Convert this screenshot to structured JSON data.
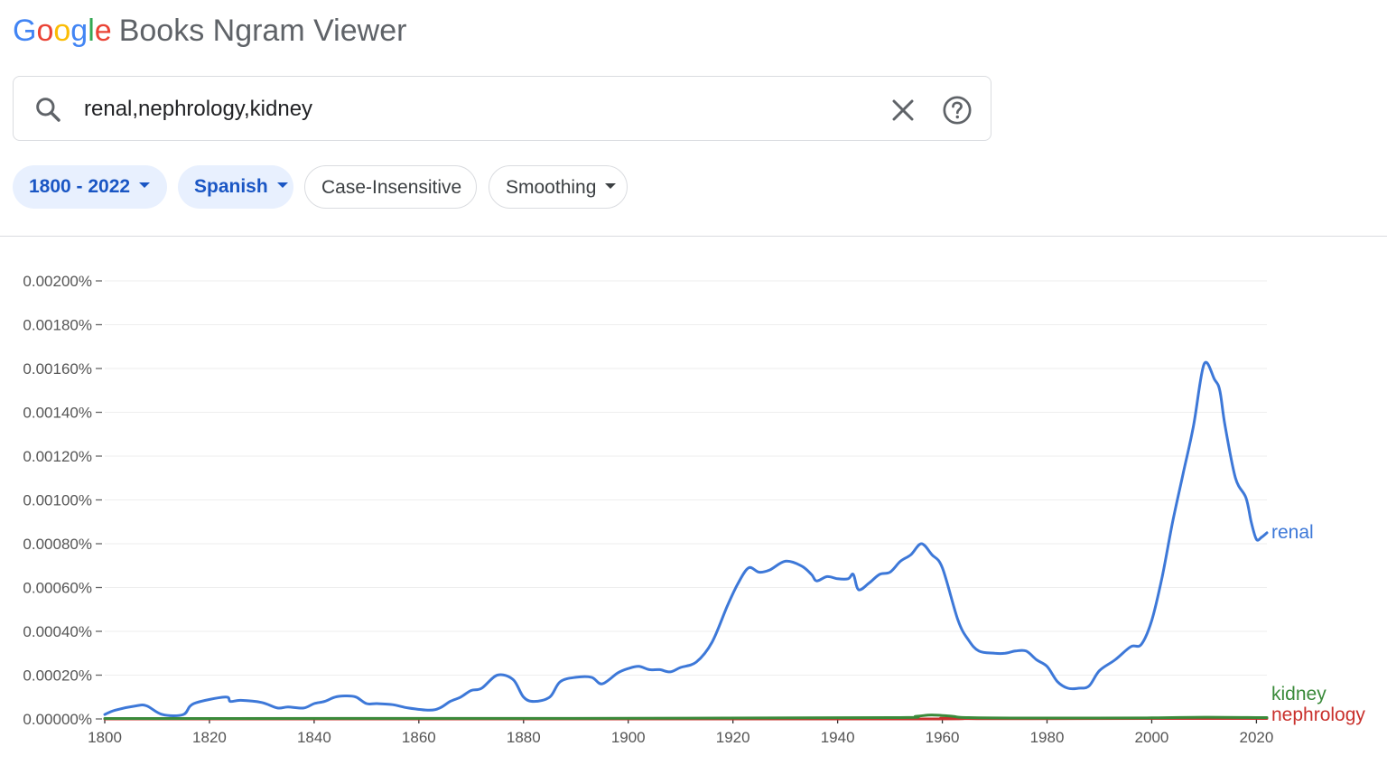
{
  "header": {
    "logo_letters": [
      {
        "ch": "G",
        "color": "#4285F4"
      },
      {
        "ch": "o",
        "color": "#EA4335"
      },
      {
        "ch": "o",
        "color": "#FBBC05"
      },
      {
        "ch": "g",
        "color": "#4285F4"
      },
      {
        "ch": "l",
        "color": "#34A853"
      },
      {
        "ch": "e",
        "color": "#EA4335"
      }
    ],
    "app_title": "Books Ngram Viewer"
  },
  "search": {
    "query": "renal,nephrology,kidney",
    "icons": {
      "search": "search-icon",
      "clear": "close-icon",
      "help": "help-icon"
    }
  },
  "filters": {
    "year_range": "1800 - 2022",
    "corpus": "Spanish",
    "case": "Case-Insensitive",
    "smoothing": "Smoothing"
  },
  "chart_data": {
    "type": "line",
    "xlim": [
      1800,
      2022
    ],
    "ylim": [
      0,
      0.002
    ],
    "y_ticks": [
      "0.00000%",
      "0.00020%",
      "0.00040%",
      "0.00060%",
      "0.00080%",
      "0.00100%",
      "0.00120%",
      "0.00140%",
      "0.00160%",
      "0.00180%",
      "0.00200%"
    ],
    "x_ticks": [
      "1800",
      "1820",
      "1840",
      "1860",
      "1880",
      "1900",
      "1920",
      "1940",
      "1960",
      "1980",
      "2000",
      "2020"
    ],
    "grid": true,
    "series": [
      {
        "name": "renal",
        "color": "#3d78d8",
        "x": [
          1800,
          1802,
          1806,
          1808,
          1811,
          1815,
          1817,
          1823,
          1824,
          1826,
          1830,
          1833,
          1835,
          1838,
          1840,
          1842,
          1844,
          1846,
          1848,
          1850,
          1852,
          1855,
          1858,
          1862,
          1864,
          1866,
          1868,
          1870,
          1872,
          1875,
          1878,
          1880,
          1882,
          1885,
          1887,
          1890,
          1893,
          1895,
          1898,
          1900,
          1902,
          1904,
          1906,
          1908,
          1910,
          1913,
          1916,
          1919,
          1921,
          1923,
          1925,
          1927,
          1930,
          1933,
          1935,
          1936,
          1938,
          1940,
          1942,
          1943,
          1944,
          1946,
          1948,
          1950,
          1952,
          1954,
          1956,
          1958,
          1960,
          1963,
          1965,
          1967,
          1970,
          1972,
          1974,
          1976,
          1978,
          1980,
          1982,
          1984,
          1986,
          1988,
          1990,
          1993,
          1996,
          1998,
          2000,
          2002,
          2004,
          2006,
          2008,
          2010,
          2012,
          2013,
          2014,
          2016,
          2018,
          2019,
          2020,
          2021,
          2022
        ],
        "y": [
          2e-05,
          4e-05,
          6e-05,
          6e-05,
          2e-05,
          2e-05,
          7e-05,
          0.0001,
          8e-05,
          8.5e-05,
          7.5e-05,
          5e-05,
          5.5e-05,
          5e-05,
          7e-05,
          8e-05,
          0.0001,
          0.000105,
          0.0001,
          7e-05,
          7e-05,
          6.5e-05,
          5e-05,
          4e-05,
          5e-05,
          8e-05,
          0.0001,
          0.00013,
          0.00014,
          0.0002,
          0.00018,
          0.0001,
          8e-05,
          0.0001,
          0.00017,
          0.00019,
          0.00019,
          0.00016,
          0.00021,
          0.00023,
          0.00024,
          0.000225,
          0.000225,
          0.000215,
          0.000235,
          0.00026,
          0.00035,
          0.00052,
          0.00062,
          0.00069,
          0.00067,
          0.00068,
          0.00072,
          0.0007,
          0.00066,
          0.00063,
          0.00065,
          0.00064,
          0.00064,
          0.00066,
          0.00059,
          0.00062,
          0.00066,
          0.00067,
          0.00072,
          0.00075,
          0.0008,
          0.00075,
          0.00069,
          0.00045,
          0.00036,
          0.00031,
          0.0003,
          0.0003,
          0.00031,
          0.00031,
          0.00027,
          0.00024,
          0.00017,
          0.00014,
          0.00014,
          0.00015,
          0.00022,
          0.00027,
          0.00033,
          0.00034,
          0.00045,
          0.00065,
          0.0009,
          0.00112,
          0.00134,
          0.00162,
          0.00155,
          0.0015,
          0.00134,
          0.0011,
          0.00101,
          0.0009,
          0.00082,
          0.00083,
          0.00085
        ]
      },
      {
        "name": "kidney",
        "color": "#3a8a3a",
        "x": [
          1800,
          1900,
          1950,
          1955,
          1958,
          1962,
          1965,
          1980,
          2000,
          2010,
          2022
        ],
        "y": [
          2e-06,
          3e-06,
          6e-06,
          1.2e-05,
          1.8e-05,
          1.2e-05,
          6e-06,
          4e-06,
          5e-06,
          8e-06,
          6e-06
        ]
      },
      {
        "name": "nephrology",
        "color": "#c9302c",
        "x": [
          1800,
          1950,
          1960,
          1970,
          2000,
          2022
        ],
        "y": [
          0,
          0,
          3e-06,
          1e-06,
          2e-06,
          2e-06
        ]
      }
    ]
  }
}
